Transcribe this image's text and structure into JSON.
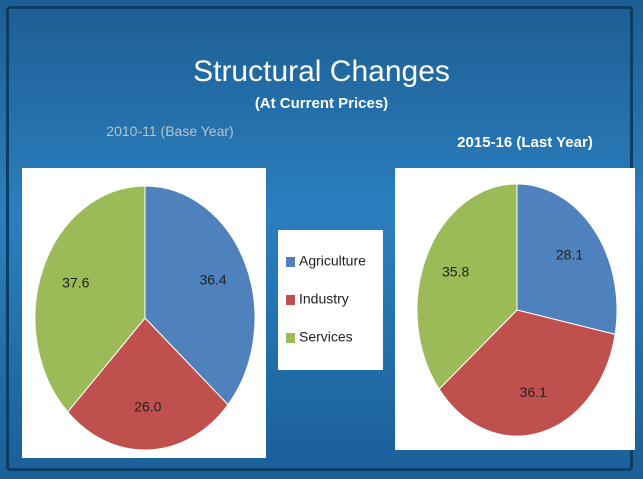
{
  "title": "Structural Changes",
  "subtitle": "(At Current Prices)",
  "chart_data": [
    {
      "type": "pie",
      "title": "2010-11 (Base Year)",
      "categories": [
        "Agriculture",
        "Industry",
        "Services"
      ],
      "values": [
        36.4,
        26.0,
        37.6
      ],
      "value_labels": [
        "36.4",
        "26.0",
        "37.6"
      ],
      "colors": [
        "#4f81bd",
        "#c0504d",
        "#9bbb59"
      ]
    },
    {
      "type": "pie",
      "title": "2015-16 (Last Year)",
      "categories": [
        "Agriculture",
        "Industry",
        "Services"
      ],
      "values": [
        28.1,
        36.1,
        35.8
      ],
      "value_labels": [
        "28.1",
        "36.1",
        "35.8"
      ],
      "colors": [
        "#4f81bd",
        "#c0504d",
        "#9bbb59"
      ]
    }
  ]
}
